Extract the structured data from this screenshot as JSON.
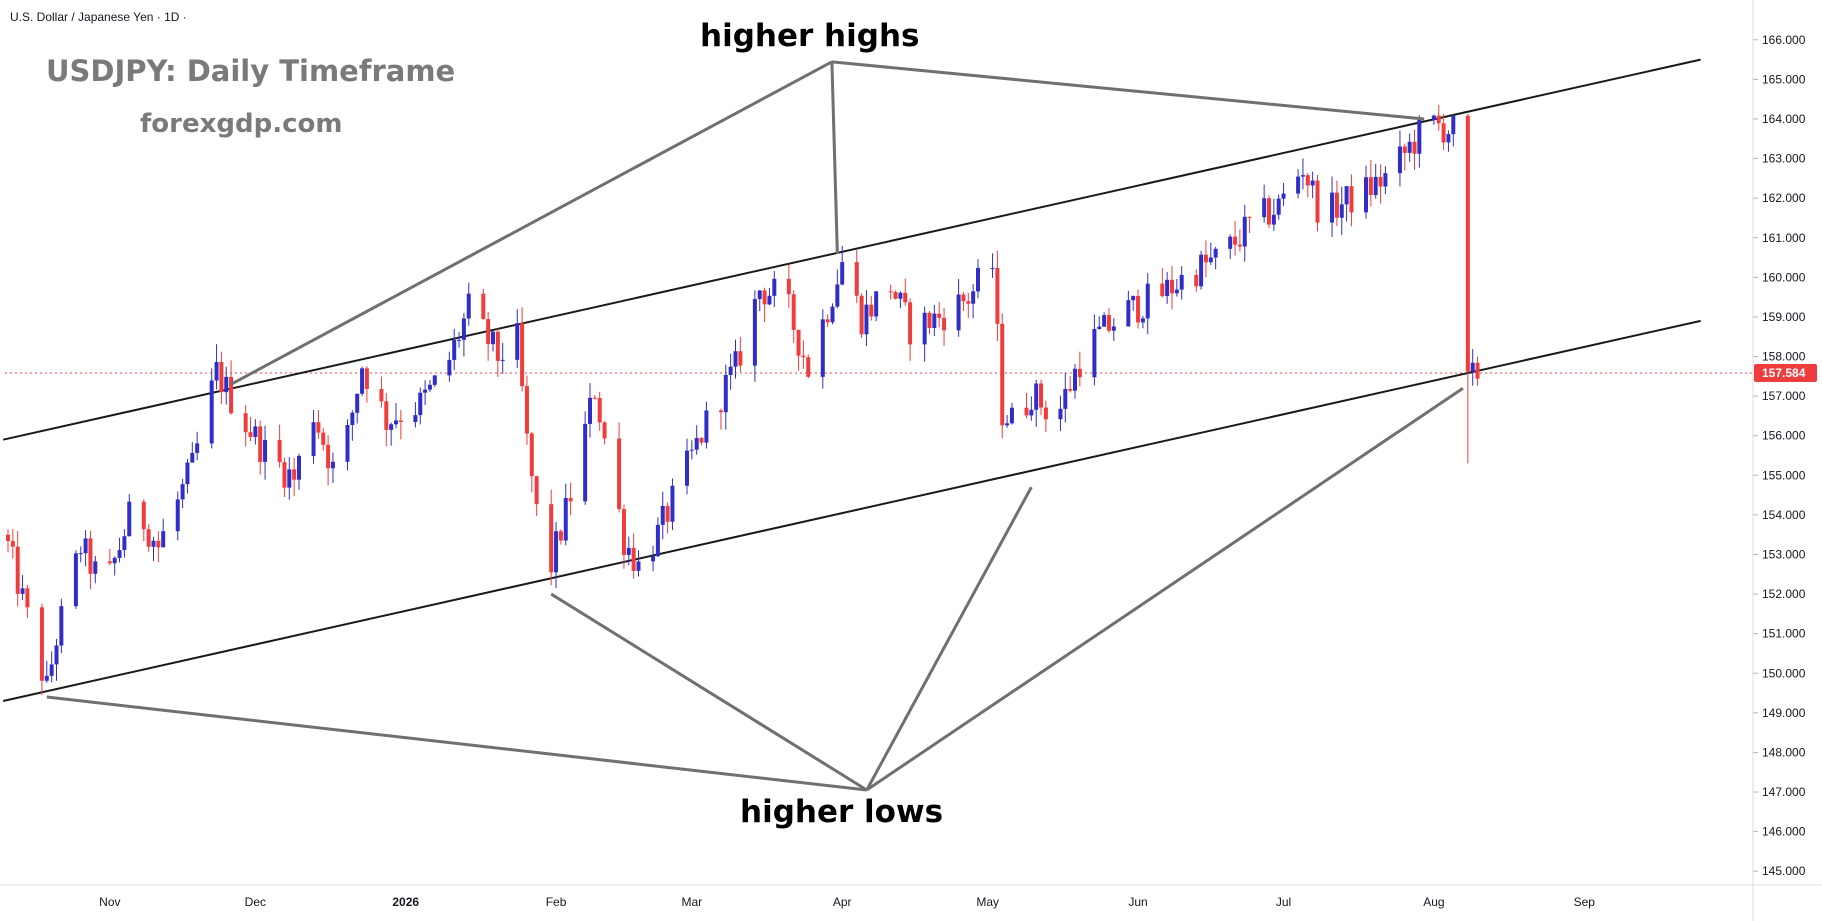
{
  "header": {
    "symbol_title": "U.S. Dollar / Japanese Yen · 1D ·"
  },
  "overlay": {
    "title": "USDJPY: Daily Timeframe",
    "subtitle": "forexgdp.com",
    "label_highs": "higher highs",
    "label_lows": "higher lows"
  },
  "colors": {
    "bull": "#2f2fc8",
    "bear": "#ef3c3c",
    "channel": "#1a1a1a",
    "pointer": "#707070",
    "price_line": "#ef3c3c",
    "background": "#ffffff"
  },
  "chart_data": {
    "type": "candlestick",
    "title": "U.S. Dollar / Japanese Yen · 1D",
    "last_price": "157.584",
    "ylim": [
      144.5,
      166.5
    ],
    "y_ticks": [
      "145.000",
      "146.000",
      "147.000",
      "148.000",
      "149.000",
      "150.000",
      "151.000",
      "152.000",
      "153.000",
      "154.000",
      "155.000",
      "156.000",
      "157.000",
      "158.000",
      "159.000",
      "160.000",
      "161.000",
      "162.000",
      "163.000",
      "164.000",
      "165.000",
      "166.000"
    ],
    "x_ticks": [
      {
        "label": "Nov",
        "day": 21,
        "bold": false
      },
      {
        "label": "Dec",
        "day": 51,
        "bold": false
      },
      {
        "label": "2026",
        "day": 82,
        "bold": true
      },
      {
        "label": "Feb",
        "day": 113,
        "bold": false
      },
      {
        "label": "Mar",
        "day": 141,
        "bold": false
      },
      {
        "label": "Apr",
        "day": 172,
        "bold": false
      },
      {
        "label": "May",
        "day": 202,
        "bold": false
      },
      {
        "label": "Jun",
        "day": 233,
        "bold": false
      },
      {
        "label": "Jul",
        "day": 263,
        "bold": false
      },
      {
        "label": "Aug",
        "day": 294,
        "bold": false
      },
      {
        "label": "Sep",
        "day": 325,
        "bold": false
      }
    ],
    "channel_lines": [
      {
        "name": "upper",
        "from": {
          "day": -1,
          "price": 155.9
        },
        "to": {
          "day": 349,
          "price": 165.5
        }
      },
      {
        "name": "lower",
        "from": {
          "day": -1,
          "price": 149.3
        },
        "to": {
          "day": 349,
          "price": 158.9
        }
      }
    ],
    "waypoints": [
      {
        "day": 0,
        "price": 153.2
      },
      {
        "day": 8,
        "price": 149.6
      },
      {
        "day": 10,
        "price": 150.9
      },
      {
        "day": 15,
        "price": 153.2
      },
      {
        "day": 20,
        "price": 152.1
      },
      {
        "day": 26,
        "price": 154.3
      },
      {
        "day": 31,
        "price": 153.2
      },
      {
        "day": 38,
        "price": 155.2
      },
      {
        "day": 43,
        "price": 157.6
      },
      {
        "day": 48,
        "price": 156.5
      },
      {
        "day": 53,
        "price": 155.6
      },
      {
        "day": 59,
        "price": 154.9
      },
      {
        "day": 63,
        "price": 156.6
      },
      {
        "day": 68,
        "price": 154.8
      },
      {
        "day": 73,
        "price": 157.8
      },
      {
        "day": 78,
        "price": 156.4
      },
      {
        "day": 85,
        "price": 156.8
      },
      {
        "day": 90,
        "price": 157.6
      },
      {
        "day": 95,
        "price": 159.2
      },
      {
        "day": 101,
        "price": 158.0
      },
      {
        "day": 105,
        "price": 158.4
      },
      {
        "day": 107,
        "price": 155.8
      },
      {
        "day": 111,
        "price": 152.3
      },
      {
        "day": 116,
        "price": 154.5
      },
      {
        "day": 121,
        "price": 157.2
      },
      {
        "day": 127,
        "price": 153.4
      },
      {
        "day": 130,
        "price": 152.7
      },
      {
        "day": 134,
        "price": 153.5
      },
      {
        "day": 140,
        "price": 155.2
      },
      {
        "day": 145,
        "price": 156.6
      },
      {
        "day": 150,
        "price": 157.7
      },
      {
        "day": 155,
        "price": 159.7
      },
      {
        "day": 160,
        "price": 159.5
      },
      {
        "day": 165,
        "price": 157.7
      },
      {
        "day": 172,
        "price": 160.4
      },
      {
        "day": 176,
        "price": 159.0
      },
      {
        "day": 182,
        "price": 159.8
      },
      {
        "day": 186,
        "price": 158.7
      },
      {
        "day": 192,
        "price": 159.0
      },
      {
        "day": 198,
        "price": 159.5
      },
      {
        "day": 203,
        "price": 160.3
      },
      {
        "day": 205,
        "price": 156.6
      },
      {
        "day": 208,
        "price": 156.3
      },
      {
        "day": 211,
        "price": 157.1
      },
      {
        "day": 216,
        "price": 156.4
      },
      {
        "day": 222,
        "price": 158.2
      },
      {
        "day": 230,
        "price": 159.1
      },
      {
        "day": 238,
        "price": 159.6
      },
      {
        "day": 245,
        "price": 160.2
      },
      {
        "day": 250,
        "price": 160.5
      },
      {
        "day": 256,
        "price": 161.3
      },
      {
        "day": 262,
        "price": 161.8
      },
      {
        "day": 267,
        "price": 162.8
      },
      {
        "day": 271,
        "price": 161.5
      },
      {
        "day": 274,
        "price": 161.8
      },
      {
        "day": 279,
        "price": 162.1
      },
      {
        "day": 285,
        "price": 162.6
      },
      {
        "day": 289,
        "price": 163.3
      },
      {
        "day": 293,
        "price": 163.9
      },
      {
        "day": 298,
        "price": 163.7
      },
      {
        "day": 300,
        "price": 159.0
      },
      {
        "day": 301,
        "price": 157.3
      },
      {
        "day": 303,
        "price": 157.6
      }
    ],
    "annotations": {
      "higher_highs": {
        "anchor": {
          "day": 174,
          "price": 166.1
        },
        "targets": [
          {
            "day": 46,
            "price": 157.3
          },
          {
            "day": 171,
            "price": 160.6
          },
          {
            "day": 292,
            "price": 164.0
          }
        ]
      },
      "higher_lows": {
        "anchor": {
          "day": 175,
          "price": 146.9
        },
        "targets": [
          {
            "day": 8,
            "price": 149.4
          },
          {
            "day": 112,
            "price": 152.0
          },
          {
            "day": 211,
            "price": 154.7
          },
          {
            "day": 300,
            "price": 157.2
          }
        ]
      }
    }
  }
}
